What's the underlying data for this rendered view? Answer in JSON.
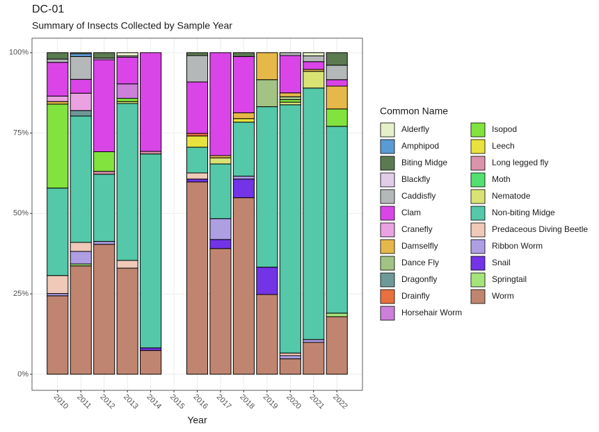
{
  "chart_data": {
    "type": "stacked_bar",
    "title": "DC-01",
    "subtitle": "Summary of Insects Collected by Sample Year",
    "x_label": "Year",
    "legend_title": "Common Name",
    "legend_position": "right",
    "grid": true,
    "categories": [
      "2010",
      "2011",
      "2012",
      "2013",
      "2014",
      "2015",
      "2016",
      "2017",
      "2018",
      "2019",
      "2020",
      "2021",
      "2022"
    ],
    "ylim": [
      -5,
      104.5
    ],
    "yticks": [
      {
        "value": 0,
        "label": "0%"
      },
      {
        "value": 25,
        "label": "25%"
      },
      {
        "value": 50,
        "label": "50%"
      },
      {
        "value": 75,
        "label": "75%"
      },
      {
        "value": 100,
        "label": "100%"
      }
    ],
    "series": [
      {
        "name": "Alderfly",
        "color": "#e6f0c9",
        "values": [
          null,
          0.3,
          null,
          1.0,
          null,
          null,
          null,
          null,
          null,
          null,
          null,
          1.0,
          null
        ]
      },
      {
        "name": "Amphipod",
        "color": "#5b9bd5",
        "values": [
          null,
          0.9,
          null,
          null,
          null,
          null,
          null,
          null,
          null,
          null,
          null,
          null,
          null
        ]
      },
      {
        "name": "Biting Midge",
        "color": "#5b7a52",
        "values": [
          2.0,
          null,
          1.7,
          null,
          null,
          null,
          0.9,
          null,
          1.2,
          null,
          null,
          null,
          3.9
        ]
      },
      {
        "name": "Blackfly",
        "color": "#e2cde9",
        "values": [
          null,
          null,
          0.5,
          null,
          null,
          null,
          null,
          null,
          null,
          null,
          null,
          null,
          null
        ]
      },
      {
        "name": "Caddisfly",
        "color": "#b4b8b8",
        "values": [
          1.0,
          7.1,
          null,
          0.4,
          null,
          null,
          8.2,
          null,
          null,
          null,
          0.9,
          1.8,
          4.5
        ]
      },
      {
        "name": "Clam",
        "color": "#da45e8",
        "values": [
          10.5,
          4.3,
          28.6,
          8.3,
          30.7,
          null,
          16.0,
          32.0,
          17.5,
          null,
          11.6,
          2.4,
          2.0
        ]
      },
      {
        "name": "Cranefly",
        "color": "#eaa2e2",
        "values": [
          1.7,
          5.4,
          null,
          null,
          null,
          null,
          null,
          null,
          null,
          null,
          null,
          null,
          null
        ]
      },
      {
        "name": "Damselfly",
        "color": "#e6b84a",
        "values": [
          0.8,
          null,
          null,
          null,
          null,
          null,
          null,
          0.7,
          1.8,
          8.4,
          1.2,
          0.6,
          7.1
        ]
      },
      {
        "name": "Dance Fly",
        "color": "#a2c383",
        "values": [
          null,
          null,
          null,
          null,
          null,
          null,
          null,
          null,
          null,
          8.4,
          0.9,
          null,
          null
        ]
      },
      {
        "name": "Dragonfly",
        "color": "#6f9999",
        "values": [
          null,
          1.7,
          null,
          null,
          null,
          null,
          null,
          null,
          null,
          null,
          null,
          null,
          null
        ]
      },
      {
        "name": "Drainfly",
        "color": "#e8703f",
        "values": [
          null,
          null,
          null,
          null,
          null,
          null,
          0.8,
          null,
          null,
          null,
          null,
          null,
          null
        ]
      },
      {
        "name": "Horsehair Worm",
        "color": "#cc80d9",
        "values": [
          null,
          null,
          null,
          4.5,
          null,
          null,
          null,
          null,
          null,
          null,
          null,
          null,
          null
        ]
      },
      {
        "name": "Isopod",
        "color": "#82e33e",
        "values": [
          26.1,
          null,
          6.1,
          1.0,
          null,
          null,
          null,
          null,
          null,
          null,
          0.8,
          null,
          5.4
        ]
      },
      {
        "name": "Leech",
        "color": "#e8e23e",
        "values": [
          null,
          null,
          null,
          null,
          null,
          null,
          3.5,
          null,
          1.1,
          null,
          null,
          null,
          null
        ]
      },
      {
        "name": "Long legged fly",
        "color": "#d993aa",
        "values": [
          null,
          null,
          0.9,
          null,
          0.8,
          null,
          null,
          null,
          null,
          null,
          null,
          null,
          null
        ]
      },
      {
        "name": "Moth",
        "color": "#52e070",
        "values": [
          null,
          null,
          null,
          null,
          null,
          null,
          null,
          null,
          null,
          null,
          null,
          null,
          null
        ]
      },
      {
        "name": "Nematode",
        "color": "#d9e374",
        "values": [
          null,
          null,
          null,
          0.6,
          null,
          null,
          null,
          1.9,
          null,
          null,
          0.8,
          5.2,
          null
        ]
      },
      {
        "name": "Non-biting Midge",
        "color": "#55c8a9",
        "values": [
          27.2,
          39.3,
          20.9,
          48.8,
          60.3,
          null,
          8.0,
          17.0,
          16.8,
          49.9,
          77.2,
          78.2,
          58.1
        ]
      },
      {
        "name": "Predaceous Diving Beetle",
        "color": "#f0c9b9",
        "values": [
          5.6,
          2.8,
          null,
          2.4,
          null,
          null,
          1.9,
          null,
          null,
          null,
          0.8,
          null,
          null
        ]
      },
      {
        "name": "Ribbon Worm",
        "color": "#ae9ee2",
        "values": [
          0.7,
          3.9,
          0.9,
          null,
          null,
          null,
          null,
          6.5,
          0.9,
          null,
          1.0,
          0.9,
          null
        ]
      },
      {
        "name": "Snail",
        "color": "#7234e6",
        "values": [
          null,
          null,
          null,
          null,
          0.8,
          null,
          0.9,
          2.8,
          5.8,
          8.5,
          null,
          null,
          null
        ]
      },
      {
        "name": "Springtail",
        "color": "#a4e47a",
        "values": [
          null,
          0.6,
          null,
          null,
          null,
          null,
          null,
          null,
          null,
          null,
          null,
          null,
          1.1
        ]
      },
      {
        "name": "Worm",
        "color": "#c08570",
        "values": [
          24.4,
          33.7,
          40.4,
          33.0,
          7.4,
          null,
          59.8,
          39.1,
          54.9,
          24.8,
          4.8,
          9.9,
          17.9
        ]
      }
    ]
  }
}
